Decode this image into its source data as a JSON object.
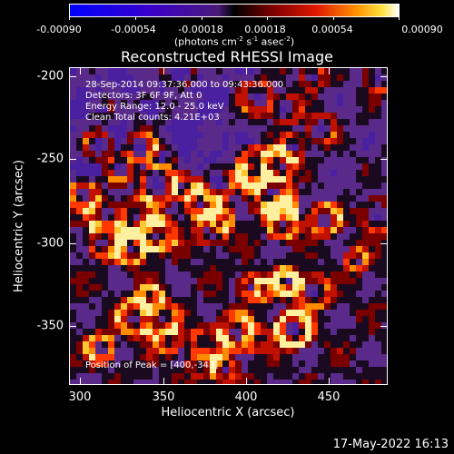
{
  "colorbar": {
    "tick_labels": [
      "-0.00090",
      "-0.00054",
      "-0.00018",
      "0.00018",
      "0.00054",
      "0.00090"
    ],
    "unit_prefix": "(photons cm",
    "unit_exp1": "-2",
    "unit_mid1": " s",
    "unit_exp2": "-1",
    "unit_mid2": " asec",
    "unit_exp3": "-2",
    "unit_suffix": ")"
  },
  "plot": {
    "title": "Reconstructed RHESSI Image",
    "xlabel": "Heliocentric X (arcsec)",
    "ylabel": "Heliocentric Y (arcsec)",
    "x_ticks": [
      "300",
      "350",
      "400",
      "450"
    ],
    "y_ticks": [
      "-200",
      "-250",
      "-300",
      "-350"
    ],
    "info_lines": [
      "28-Sep-2014 09:37:36.000 to 09:43:36.000",
      "Detectors: 3F 6F 9F, Att 0",
      "Energy Range: 12.0 - 25.0 keV",
      "Clean     Total counts: 4.21E+03"
    ],
    "peak_text": "Position of Peak = [400,-343]"
  },
  "footer": {
    "timestamp": "17-May-2022 16:13"
  },
  "chart_data": {
    "type": "heatmap",
    "title": "Reconstructed RHESSI Image",
    "xlabel": "Heliocentric X (arcsec)",
    "ylabel": "Heliocentric Y (arcsec)",
    "xlim": [
      294,
      484
    ],
    "ylim": [
      -389,
      -193
    ],
    "colorbar_range": [
      -0.0009,
      0.0009
    ],
    "colormap": "RHESSI red-temperature (blue-purple negative, red-orange-yellow-white positive)",
    "peak_position": [
      400,
      -343
    ],
    "colors": {
      "background": "#000000",
      "axes": "#ffffff"
    }
  }
}
